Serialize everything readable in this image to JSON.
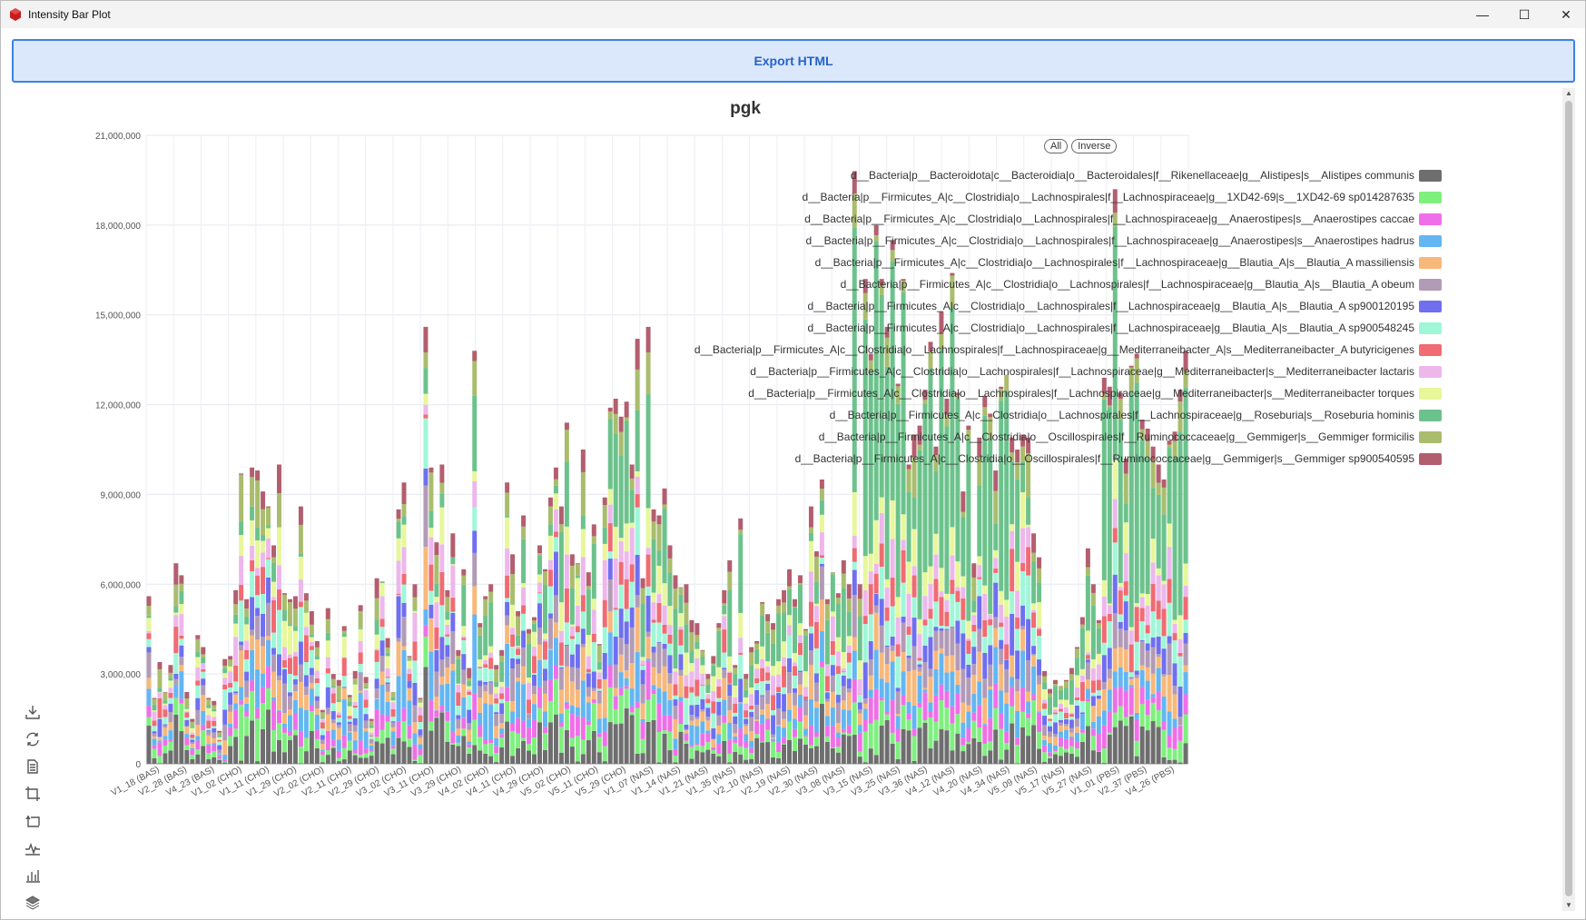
{
  "window": {
    "title": "Intensity Bar Plot",
    "controls": {
      "minimize": "—",
      "maximize": "☐",
      "close": "✕"
    }
  },
  "toolbar": {
    "export_label": "Export HTML"
  },
  "legend_controls": {
    "all": "All",
    "inverse": "Inverse"
  },
  "colors": {
    "accent": "#3b82e6",
    "export_bg": "#dbe8fb"
  },
  "toolbox_icons": [
    "download-icon",
    "refresh-icon",
    "data-view-icon",
    "zoom-icon",
    "zoom-reset-icon",
    "line-chart-icon",
    "bar-chart-icon",
    "stack-icon"
  ],
  "chart_data": {
    "type": "bar",
    "stacked": true,
    "title": "pgk",
    "xlabel": "",
    "ylabel": "",
    "ylim": [
      0,
      21000000
    ],
    "yticks": [
      "0",
      "3,000,000",
      "6,000,000",
      "9,000,000",
      "12,000,000",
      "15,000,000",
      "18,000,000",
      "21,000,000"
    ],
    "ytick_values": [
      0,
      3000000,
      6000000,
      9000000,
      12000000,
      15000000,
      18000000,
      21000000
    ],
    "grid": true,
    "legend_position": "top-right",
    "xtick_labels": [
      "V1_18 (BAS)",
      "V2_28 (BAS)",
      "V4_23 (BAS)",
      "V1_02 (CHO)",
      "V1_11 (CHO)",
      "V1_29 (CHO)",
      "V2_02 (CHO)",
      "V2_11 (CHO)",
      "V2_29 (CHO)",
      "V3_02 (CHO)",
      "V3_11 (CHO)",
      "V3_29 (CHO)",
      "V4_02 (CHO)",
      "V4_11 (CHO)",
      "V4_29 (CHO)",
      "V5_02 (CHO)",
      "V5_11 (CHO)",
      "V5_29 (CHO)",
      "V1_07 (NAS)",
      "V1_14 (NAS)",
      "V1_21 (NAS)",
      "V1_35 (NAS)",
      "V2_10 (NAS)",
      "V2_19 (NAS)",
      "V2_30 (NAS)",
      "V3_08 (NAS)",
      "V3_15 (NAS)",
      "V3_25 (NAS)",
      "V3_36 (NAS)",
      "V4_12 (NAS)",
      "V4_20 (NAS)",
      "V4_34 (NAS)",
      "V5_09 (NAS)",
      "V5_17 (NAS)",
      "V5_27 (NAS)",
      "V1_01 (PBS)",
      "V2_37 (PBS)",
      "V4_26 (PBS)"
    ],
    "bar_count": 192,
    "series": [
      {
        "name": "d__Bacteria|p__Bacteroidota|c__Bacteroidia|o__Bacteroidales|f__Rikenellaceae|g__Alistipes|s__Alistipes communis",
        "color": "#6e6e6e"
      },
      {
        "name": "d__Bacteria|p__Firmicutes_A|c__Clostridia|o__Lachnospirales|f__Lachnospiraceae|g__1XD42-69|s__1XD42-69 sp014287635",
        "color": "#7ef07e"
      },
      {
        "name": "d__Bacteria|p__Firmicutes_A|c__Clostridia|o__Lachnospirales|f__Lachnospiraceae|g__Anaerostipes|s__Anaerostipes caccae",
        "color": "#ef6fe8"
      },
      {
        "name": "d__Bacteria|p__Firmicutes_A|c__Clostridia|o__Lachnospirales|f__Lachnospiraceae|g__Anaerostipes|s__Anaerostipes hadrus",
        "color": "#63b6f2"
      },
      {
        "name": "d__Bacteria|p__Firmicutes_A|c__Clostridia|o__Lachnospirales|f__Lachnospiraceae|g__Blautia_A|s__Blautia_A massiliensis",
        "color": "#f8b87a"
      },
      {
        "name": "d__Bacteria|p__Firmicutes_A|c__Clostridia|o__Lachnospirales|f__Lachnospiraceae|g__Blautia_A|s__Blautia_A obeum",
        "color": "#b29bb6"
      },
      {
        "name": "d__Bacteria|p__Firmicutes_A|c__Clostridia|o__Lachnospirales|f__Lachnospiraceae|g__Blautia_A|s__Blautia_A sp900120195",
        "color": "#6f6ff0"
      },
      {
        "name": "d__Bacteria|p__Firmicutes_A|c__Clostridia|o__Lachnospirales|f__Lachnospiraceae|g__Blautia_A|s__Blautia_A sp900548245",
        "color": "#9ff7d8"
      },
      {
        "name": "d__Bacteria|p__Firmicutes_A|c__Clostridia|o__Lachnospirales|f__Lachnospiraceae|g__Mediterraneibacter_A|s__Mediterraneibacter_A butyricigenes",
        "color": "#f06b72"
      },
      {
        "name": "d__Bacteria|p__Firmicutes_A|c__Clostridia|o__Lachnospirales|f__Lachnospiraceae|g__Mediterraneibacter|s__Mediterraneibacter lactaris",
        "color": "#edb7ec"
      },
      {
        "name": "d__Bacteria|p__Firmicutes_A|c__Clostridia|o__Lachnospirales|f__Lachnospiraceae|g__Mediterraneibacter|s__Mediterraneibacter torques",
        "color": "#e7f79a"
      },
      {
        "name": "d__Bacteria|p__Firmicutes_A|c__Clostridia|o__Lachnospirales|f__Lachnospiraceae|g__Roseburia|s__Roseburia hominis",
        "color": "#6cc28c"
      },
      {
        "name": "d__Bacteria|p__Firmicutes_A|c__Clostridia|o__Oscillospirales|f__Ruminococcaceae|g__Gemmiger|s__Gemmiger formicilis",
        "color": "#a9bd6d"
      },
      {
        "name": "d__Bacteria|p__Firmicutes_A|c__Clostridia|o__Oscillospirales|f__Ruminococcaceae|g__Gemmiger|s__Gemmiger sp900540595",
        "color": "#b35e6e"
      }
    ],
    "totals": [
      5600000,
      2200000,
      3400000,
      2400000,
      3300000,
      6700000,
      6300000,
      2400000,
      1500000,
      4300000,
      3900000,
      2200000,
      2100000,
      1100000,
      3500000,
      3600000,
      5800000,
      9700000,
      5500000,
      9900000,
      9800000,
      9100000,
      8600000,
      7300000,
      10000000,
      5700000,
      5500000,
      5600000,
      8600000,
      5700000,
      5100000,
      4100000,
      1800000,
      5200000,
      3000000,
      2800000,
      4600000,
      2300000,
      3100000,
      5300000,
      2900000,
      1500000,
      6200000,
      6100000,
      4200000,
      2400000,
      8500000,
      9400000,
      3600000,
      6000000,
      2200000,
      14600000,
      9900000,
      7400000,
      10000000,
      5800000,
      7700000,
      3800000,
      6500000,
      3200000,
      13800000,
      4700000,
      5600000,
      6000000,
      3300000,
      3800000,
      9400000,
      7000000,
      5100000,
      8300000,
      4500000,
      4900000,
      7300000,
      6500000,
      8900000,
      9900000,
      8600000,
      11400000,
      7000000,
      6700000,
      10500000,
      6400000,
      8000000,
      4000000,
      8900000,
      11900000,
      12200000,
      11600000,
      12100000,
      10000000,
      14200000,
      6200000,
      14600000,
      8500000,
      8300000,
      9200000,
      7300000,
      6300000,
      5900000,
      6000000,
      4800000,
      4700000,
      3800000,
      3000000,
      3600000,
      4700000,
      5800000,
      6800000,
      3300000,
      8200000,
      3000000,
      3900000,
      4100000,
      5400000,
      5000000,
      4700000,
      5500000,
      5800000,
      6500000,
      5500000,
      6300000,
      4500000,
      8600000,
      7100000,
      9500000,
      5500000,
      6400000,
      5700000,
      6800000,
      6000000,
      19800000,
      6000000,
      16200000,
      13700000,
      18000000,
      16200000,
      14600000,
      17500000,
      12700000,
      16200000,
      10000000,
      11000000,
      11300000,
      12500000,
      14100000,
      10600000,
      15100000,
      12200000,
      16400000,
      12400000,
      9100000,
      11300000,
      6700000,
      10900000,
      12300000,
      11700000,
      9800000,
      12600000,
      13000000,
      10900000,
      10500000,
      11000000,
      10900000,
      7700000,
      6900000,
      3100000,
      2500000,
      2800000,
      2600000,
      2800000,
      3200000,
      3900000,
      4900000,
      7200000,
      6000000,
      4800000,
      12900000,
      12600000,
      19200000,
      12400000,
      10200000,
      13300000,
      13700000,
      11500000,
      11200000,
      10600000,
      10000000,
      9500000,
      10800000,
      11100000,
      12500000,
      13800000
    ]
  }
}
